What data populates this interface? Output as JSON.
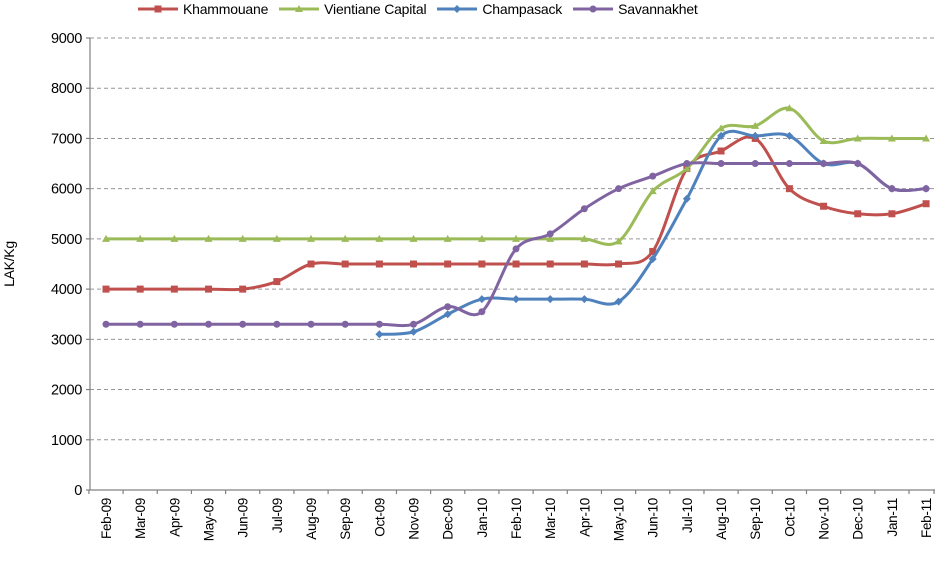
{
  "chart": {
    "ylabel": "LAK/Kg",
    "background_color": "#FFFFFF",
    "axis_color": "#808080",
    "gridline_color": "#969696",
    "text_color": "#000000",
    "legend": {
      "position": "top",
      "entries": [
        {
          "label": "Khammouane",
          "marker": "square",
          "color": "#C0504D"
        },
        {
          "label": "Vientiane Capital",
          "marker": "triangle",
          "color": "#9BBB59"
        },
        {
          "label": "Champasack",
          "marker": "diamond",
          "color": "#4F81BD"
        },
        {
          "label": "Savannakhet",
          "marker": "circle",
          "color": "#8064A2"
        }
      ]
    }
  },
  "chart_data": {
    "type": "line",
    "title": "",
    "xlabel": "",
    "ylabel": "LAK/Kg",
    "ylim": [
      0,
      9000
    ],
    "y_step": 1000,
    "grid": "horizontal dashed",
    "line_style": "smoothed with markers",
    "legend_position": "top",
    "categories": [
      "Feb-09",
      "Mar-09",
      "Apr-09",
      "May-09",
      "Jun-09",
      "Jul-09",
      "Aug-09",
      "Sep-09",
      "Oct-09",
      "Nov-09",
      "Dec-09",
      "Jan-10",
      "Feb-10",
      "Mar-10",
      "Apr-10",
      "May-10",
      "Jun-10",
      "Jul-10",
      "Aug-10",
      "Sep-10",
      "Oct-10",
      "Nov-10",
      "Dec-10",
      "Jan-11",
      "Feb-11"
    ],
    "series": [
      {
        "name": "Khammouane",
        "color": "#C0504D",
        "marker": "square",
        "values": [
          4000,
          4000,
          4000,
          4000,
          4000,
          4150,
          4500,
          4500,
          4500,
          4500,
          4500,
          4500,
          4500,
          4500,
          4500,
          4500,
          4750,
          6400,
          6750,
          7000,
          6000,
          5650,
          5500,
          5500,
          5700
        ]
      },
      {
        "name": "Vientiane Capital",
        "color": "#9BBB59",
        "marker": "triangle",
        "values": [
          5000,
          5000,
          5000,
          5000,
          5000,
          5000,
          5000,
          5000,
          5000,
          5000,
          5000,
          5000,
          5000,
          5000,
          5000,
          4950,
          5950,
          6400,
          7200,
          7250,
          7600,
          6950,
          7000,
          7000,
          7000
        ]
      },
      {
        "name": "Champasack",
        "color": "#4F81BD",
        "marker": "diamond",
        "values": [
          null,
          null,
          null,
          null,
          null,
          null,
          null,
          null,
          3100,
          3150,
          3500,
          3800,
          3800,
          3800,
          3800,
          3750,
          4600,
          5800,
          7050,
          7050,
          7050,
          6500,
          6500,
          6000,
          6000
        ]
      },
      {
        "name": "Savannakhet",
        "color": "#8064A2",
        "marker": "circle",
        "values": [
          3300,
          3300,
          3300,
          3300,
          3300,
          3300,
          3300,
          3300,
          3300,
          3300,
          3650,
          3550,
          4800,
          5100,
          5600,
          6000,
          6250,
          6500,
          6500,
          6500,
          6500,
          6500,
          6500,
          6000,
          6000
        ]
      }
    ]
  }
}
